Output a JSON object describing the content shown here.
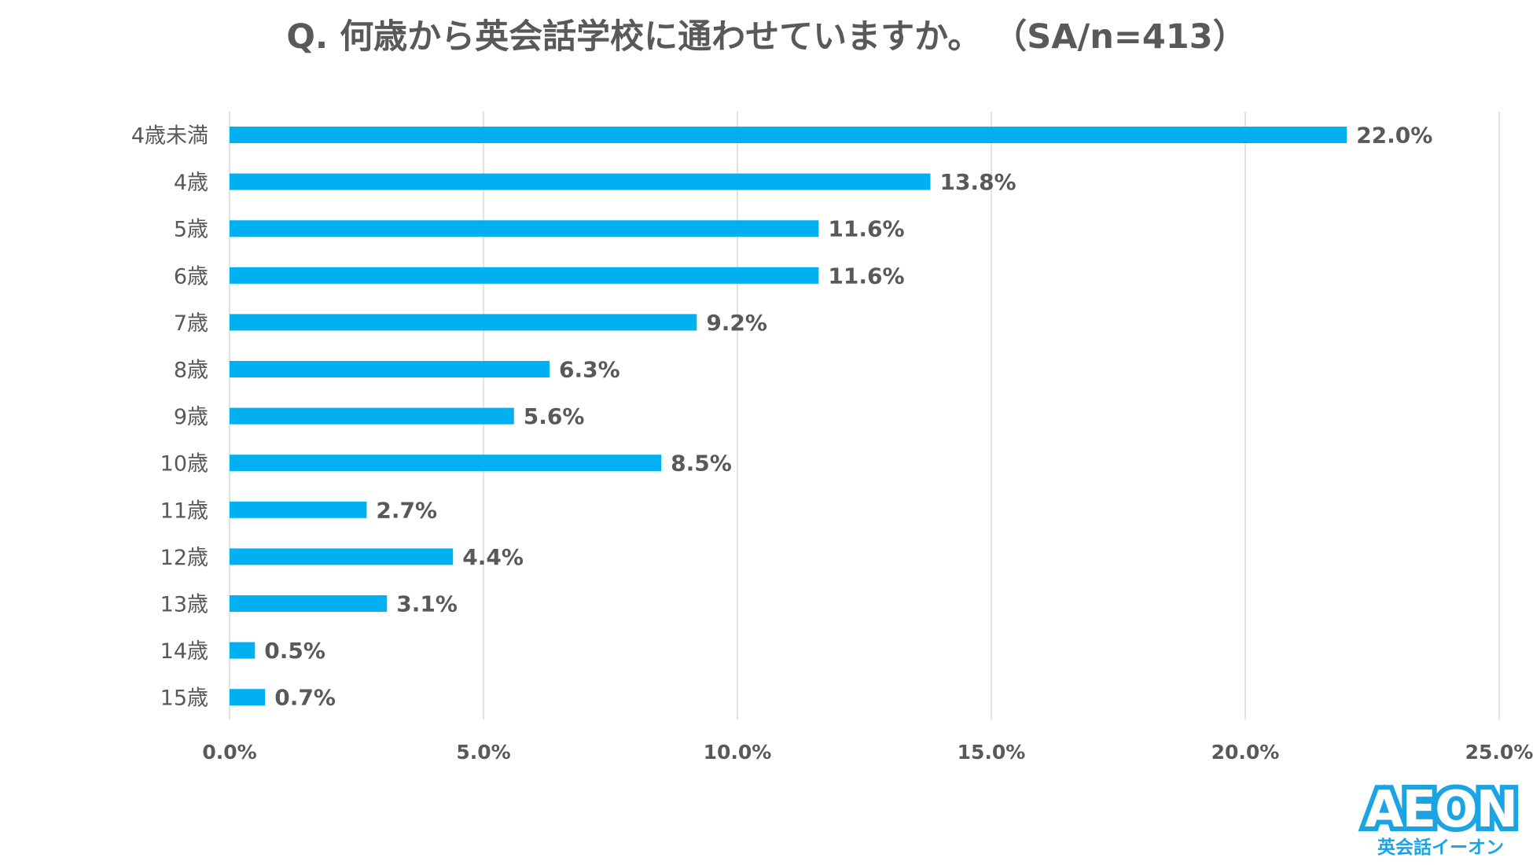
{
  "title": "Q. 何歳から英会話学校に通わせていますか。 （SA/n=413）",
  "logo": {
    "word": "AEON",
    "sub": "英会話イーオン"
  },
  "colors": {
    "bar": "#00b0f0",
    "grid": "#d9d9d9",
    "text": "#595959",
    "brand": "#1aa4e3"
  },
  "chart_data": {
    "type": "bar",
    "orientation": "horizontal",
    "title": "Q. 何歳から英会話学校に通わせていますか。 （SA/n=413）",
    "categories": [
      "4歳未満",
      "4歳",
      "5歳",
      "6歳",
      "7歳",
      "8歳",
      "9歳",
      "10歳",
      "11歳",
      "12歳",
      "13歳",
      "14歳",
      "15歳"
    ],
    "values": [
      22.0,
      13.8,
      11.6,
      11.6,
      9.2,
      6.3,
      5.6,
      8.5,
      2.7,
      4.4,
      3.1,
      0.5,
      0.7
    ],
    "data_labels": [
      "22.0%",
      "13.8%",
      "11.6%",
      "11.6%",
      "9.2%",
      "6.3%",
      "5.6%",
      "8.5%",
      "2.7%",
      "4.4%",
      "3.1%",
      "0.5%",
      "0.7%"
    ],
    "xlim": [
      0,
      25
    ],
    "xticks": [
      0,
      5,
      10,
      15,
      20,
      25
    ],
    "xtick_labels": [
      "0.0%",
      "5.0%",
      "10.0%",
      "15.0%",
      "20.0%",
      "25.0%"
    ],
    "xlabel": "",
    "ylabel": "",
    "grid": "vertical",
    "legend": "none"
  }
}
